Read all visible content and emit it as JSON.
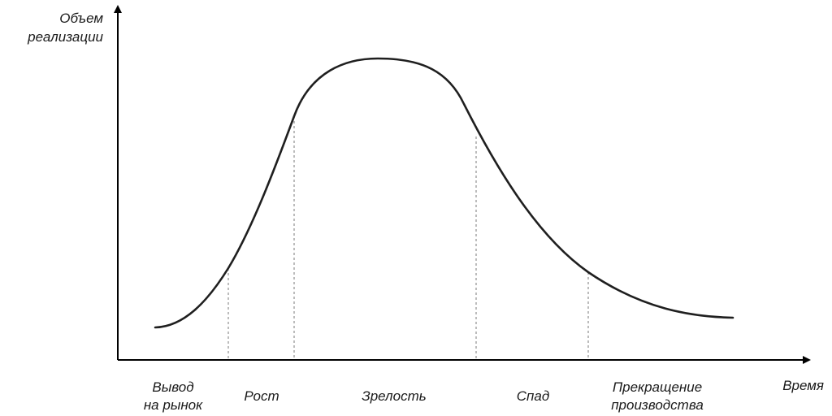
{
  "y_axis": {
    "label_line1": "Объем",
    "label_line2": "реализации"
  },
  "x_axis": {
    "label": "Время"
  },
  "stages": [
    {
      "line1": "Вывод",
      "line2": "на рынок"
    },
    {
      "line1": "Рост",
      "line2": ""
    },
    {
      "line1": "Зрелость",
      "line2": ""
    },
    {
      "line1": "Спад",
      "line2": ""
    },
    {
      "line1": "Прекращение",
      "line2": "производства"
    }
  ],
  "colors": {
    "axis": "#000000",
    "curve": "#1f1f1f",
    "divider": "#7a7a7a",
    "text": "#1a1a1a"
  }
}
